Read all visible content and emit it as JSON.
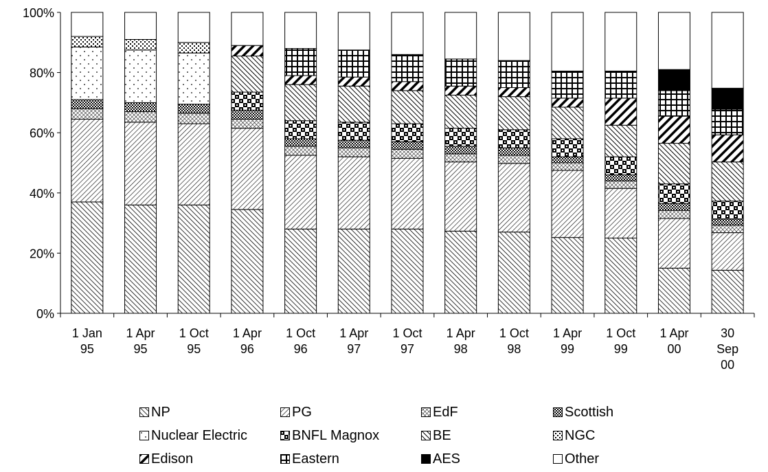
{
  "chart_data": {
    "type": "bar",
    "stacked": true,
    "percent": true,
    "title": "",
    "xlabel": "",
    "ylabel": "",
    "ylim": [
      0,
      100
    ],
    "yticks": [
      "0%",
      "20%",
      "40%",
      "60%",
      "80%",
      "100%"
    ],
    "categories": [
      [
        "1 Jan",
        "95"
      ],
      [
        "1 Apr",
        "95"
      ],
      [
        "1 Oct",
        "95"
      ],
      [
        "1 Apr",
        "96"
      ],
      [
        "1 Oct",
        "96"
      ],
      [
        "1 Apr",
        "97"
      ],
      [
        "1 Oct",
        "97"
      ],
      [
        "1 Apr",
        "98"
      ],
      [
        "1 Oct",
        "98"
      ],
      [
        "1 Apr",
        "99"
      ],
      [
        "1 Oct",
        "99"
      ],
      [
        "1 Apr",
        "00"
      ],
      [
        "30",
        "Sep",
        "00"
      ]
    ],
    "series": [
      {
        "name": "NP",
        "pattern": "diag-dense",
        "values": [
          37,
          36,
          36,
          34.5,
          28,
          28,
          28,
          27.3,
          27,
          25.2,
          25,
          15,
          14.3
        ]
      },
      {
        "name": "PG",
        "pattern": "diag-light",
        "values": [
          27.5,
          27.5,
          27,
          27,
          24.5,
          24,
          23.5,
          23,
          22.8,
          22.3,
          16.5,
          16.5,
          12.5
        ]
      },
      {
        "name": "EdF",
        "pattern": "crosshatch",
        "values": [
          3.5,
          3.5,
          3.5,
          3,
          3,
          3,
          3,
          2.7,
          2.7,
          2.5,
          2.5,
          2.7,
          2.5
        ]
      },
      {
        "name": "Scottish",
        "pattern": "grid-dense",
        "values": [
          3,
          3,
          3,
          3,
          2.5,
          2.5,
          2.5,
          2.5,
          2.5,
          2,
          2,
          2.3,
          2
        ]
      },
      {
        "name": "Nuclear Electric",
        "pattern": "dots",
        "values": [
          17.5,
          17.5,
          17,
          0,
          0,
          0,
          0,
          0,
          0,
          0,
          0,
          0,
          0
        ]
      },
      {
        "name": "BNFL Magnox",
        "pattern": "checker",
        "values": [
          0,
          0,
          0,
          6,
          6,
          6,
          6,
          6,
          6,
          6,
          6,
          6.5,
          6
        ]
      },
      {
        "name": "BE",
        "pattern": "diag-back",
        "values": [
          0,
          0,
          0,
          12,
          12,
          12,
          11,
          11,
          11,
          10.5,
          10.5,
          13.5,
          13
        ]
      },
      {
        "name": "NGC",
        "pattern": "cross-dots",
        "values": [
          3.5,
          3.5,
          3.5,
          0,
          0,
          0,
          0,
          0,
          0,
          0,
          0,
          0,
          0
        ]
      },
      {
        "name": "Edison",
        "pattern": "diag-bold",
        "values": [
          0,
          0,
          0,
          3.5,
          3,
          3,
          3,
          3,
          3,
          3,
          9,
          9,
          9
        ]
      },
      {
        "name": "Eastern",
        "pattern": "grid-large",
        "values": [
          0,
          0,
          0,
          0,
          9,
          9,
          9,
          9,
          9,
          9,
          9,
          8.5,
          8.5
        ]
      },
      {
        "name": "AES",
        "pattern": "solid-black",
        "values": [
          0,
          0,
          0,
          0,
          0,
          0,
          0,
          0,
          0,
          0,
          0,
          7,
          7
        ]
      },
      {
        "name": "Other",
        "pattern": "white",
        "values": [
          8,
          9,
          10,
          11,
          12,
          12.5,
          14,
          15.5,
          16,
          19.5,
          19.5,
          19,
          25.2
        ]
      }
    ],
    "legend_position": "bottom",
    "legend": [
      [
        "NP",
        "PG",
        "EdF",
        "Scottish"
      ],
      [
        "Nuclear Electric",
        "BNFL Magnox",
        "BE",
        "NGC"
      ],
      [
        "Edison",
        "Eastern",
        "AES",
        "Other"
      ]
    ]
  }
}
